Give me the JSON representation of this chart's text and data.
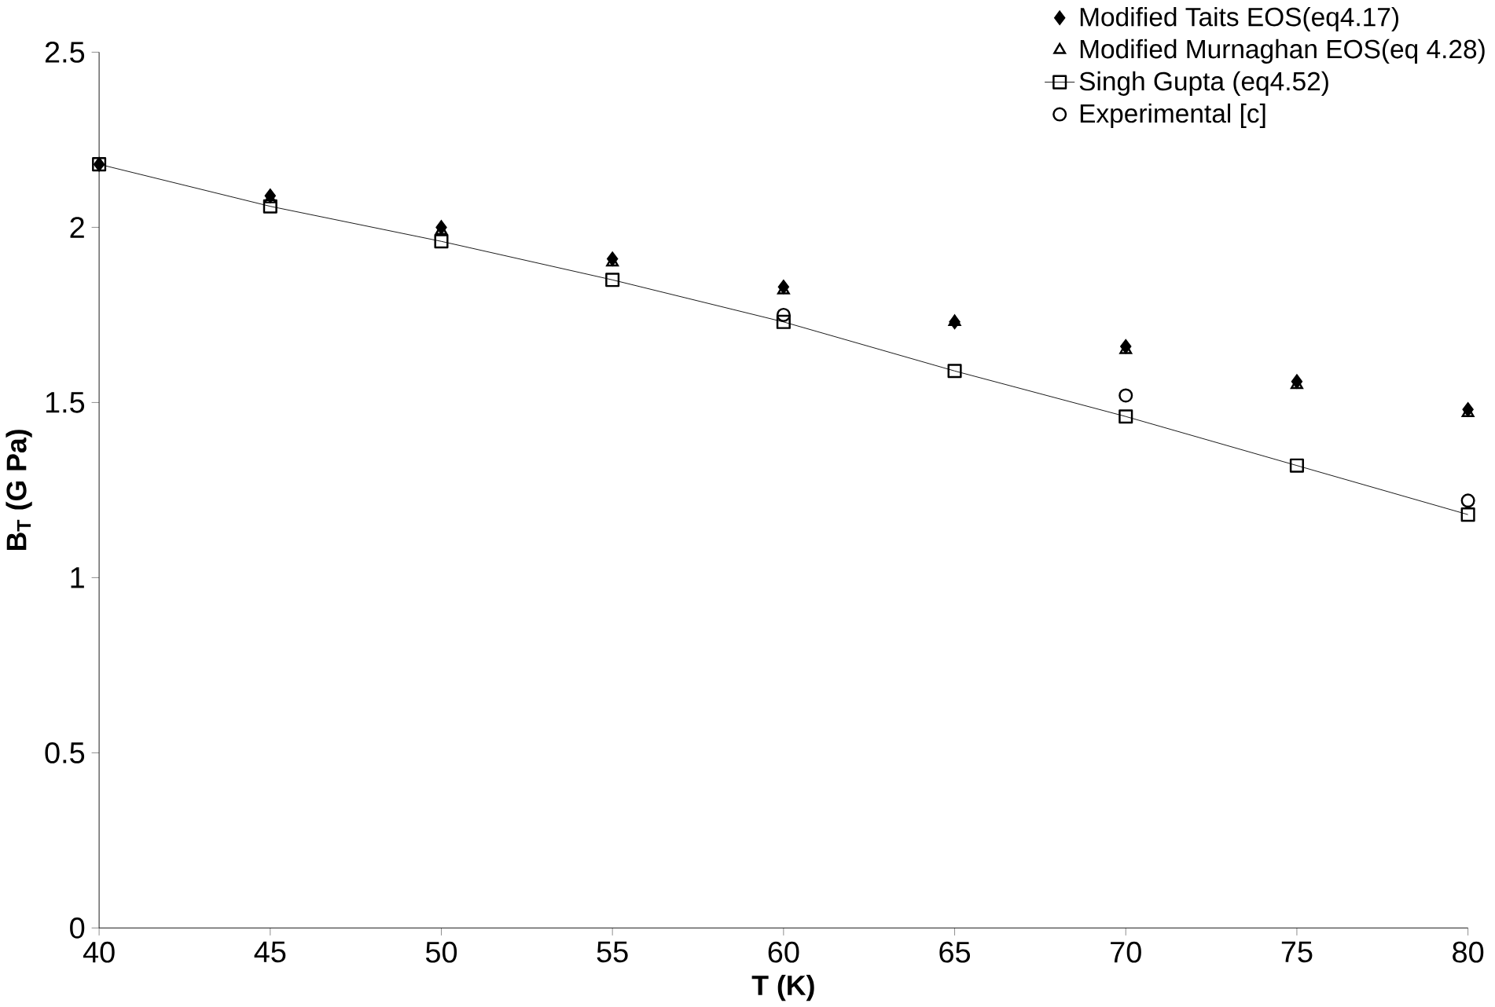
{
  "chart_data": {
    "type": "scatter",
    "xlabel": "T (K)",
    "ylabel": "B$_{T}$ (G Pa)",
    "xlim": [
      40,
      80
    ],
    "ylim": [
      0,
      2.5
    ],
    "xticks": [
      40,
      45,
      50,
      55,
      60,
      65,
      70,
      75,
      80
    ],
    "yticks": [
      0,
      0.5,
      1,
      1.5,
      2,
      2.5
    ],
    "grid": false,
    "legend": "top right",
    "series": [
      {
        "name": "Modified Taits EOS(eq4.17)",
        "marker": "diamond",
        "color": "#000000",
        "x": [
          40,
          45,
          50,
          55,
          60,
          65,
          70,
          75,
          80
        ],
        "values": [
          2.18,
          2.09,
          2.0,
          1.91,
          1.83,
          1.73,
          1.66,
          1.56,
          1.48
        ]
      },
      {
        "name": "Modified Murnaghan EOS(eq 4.28)",
        "marker": "triangle",
        "color": "#000000",
        "x": [
          45,
          50,
          55,
          60,
          65,
          70,
          75,
          80
        ],
        "values": [
          2.08,
          1.99,
          1.9,
          1.82,
          1.73,
          1.65,
          1.55,
          1.47
        ]
      },
      {
        "name": "Singh Gupta (eq4.52)",
        "type": "line",
        "marker": "square",
        "color": "#000000",
        "x": [
          40,
          45,
          50,
          55,
          60,
          65,
          70,
          75,
          80
        ],
        "values": [
          2.18,
          2.06,
          1.96,
          1.85,
          1.73,
          1.59,
          1.46,
          1.32,
          1.18
        ]
      },
      {
        "name": "Experimental [c]",
        "marker": "circle",
        "color": "#000000",
        "x": [
          60,
          70,
          80
        ],
        "values": [
          1.75,
          1.52,
          1.22
        ]
      }
    ]
  }
}
